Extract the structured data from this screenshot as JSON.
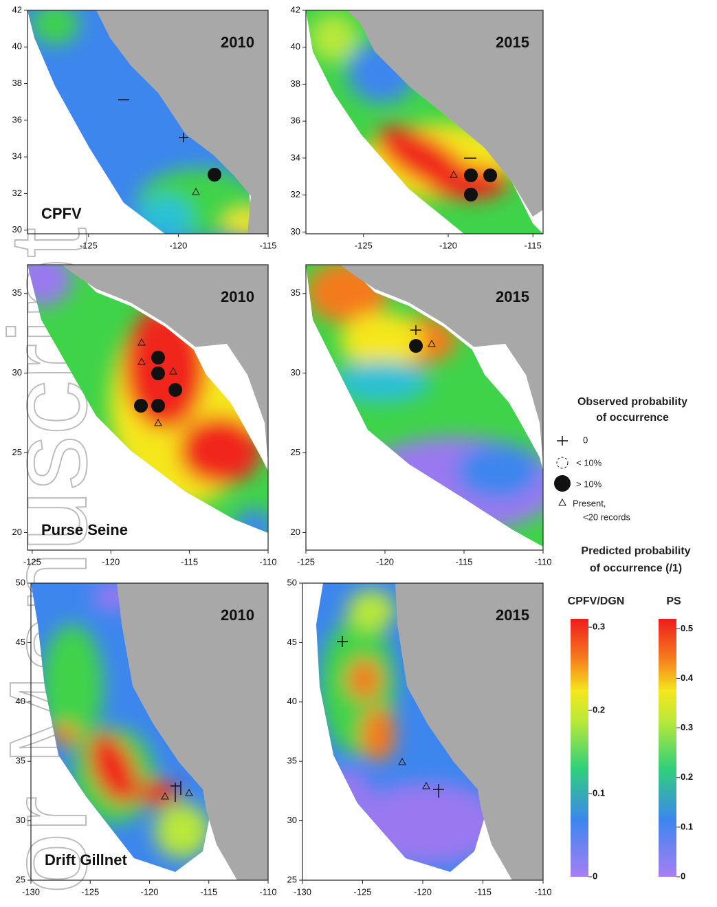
{
  "watermark": "or Manuscript",
  "panels": [
    {
      "year": "2010",
      "label": "CPFV",
      "xlim": [
        -128.4,
        -115
      ],
      "ylim": [
        29.8,
        42
      ],
      "xticks": [
        -125,
        -120,
        -115
      ],
      "yticks": [
        30,
        32,
        34,
        36,
        38,
        40,
        42
      ]
    },
    {
      "year": "2015",
      "xlim": [
        -128.4,
        -114.4
      ],
      "ylim": [
        29.9,
        42
      ],
      "xticks": [
        -125,
        -120,
        -115
      ],
      "yticks": [
        30,
        32,
        34,
        36,
        38,
        40,
        42
      ]
    },
    {
      "year": "2010",
      "label": "Purse Seine",
      "xlim": [
        -125.3,
        -110
      ],
      "ylim": [
        18.9,
        36.8
      ],
      "xticks": [
        -125,
        -120,
        -115,
        -110
      ],
      "yticks": [
        20,
        25,
        30,
        35
      ]
    },
    {
      "year": "2015",
      "xlim": [
        -125,
        -110
      ],
      "ylim": [
        18.9,
        36.8
      ],
      "xticks": [
        -125,
        -120,
        -115,
        -110
      ],
      "yticks": [
        20,
        25,
        30,
        35
      ]
    },
    {
      "year": "2010",
      "label": "Drift Gillnet",
      "xlim": [
        -130,
        -110
      ],
      "ylim": [
        25,
        50
      ],
      "xticks": [
        -130,
        -125,
        -120,
        -115,
        -110
      ],
      "yticks": [
        25,
        30,
        35,
        40,
        45,
        50
      ]
    },
    {
      "year": "2015",
      "xlim": [
        -130,
        -110
      ],
      "ylim": [
        25,
        50
      ],
      "xticks": [
        -130,
        -125,
        -120,
        -115,
        -110
      ],
      "yticks": [
        25,
        30,
        35,
        40,
        45,
        50
      ]
    }
  ],
  "legend": {
    "observed_title": [
      "Observed probability",
      "of occurrence"
    ],
    "observed_items": [
      "0",
      "< 10%",
      "> 10%",
      "Present,",
      "<20 records"
    ],
    "predicted_title": [
      "Predicted probability",
      "of occurrence (/1)"
    ],
    "colorbars": [
      {
        "name": "CPFV/DGN",
        "lim": [
          0,
          0.31
        ],
        "ticks": [
          0,
          0.1,
          0.2,
          0.3
        ]
      },
      {
        "name": "PS",
        "lim": [
          0,
          0.52
        ],
        "ticks": [
          0,
          0.1,
          0.2,
          0.3,
          0.4,
          0.5
        ]
      }
    ]
  }
}
